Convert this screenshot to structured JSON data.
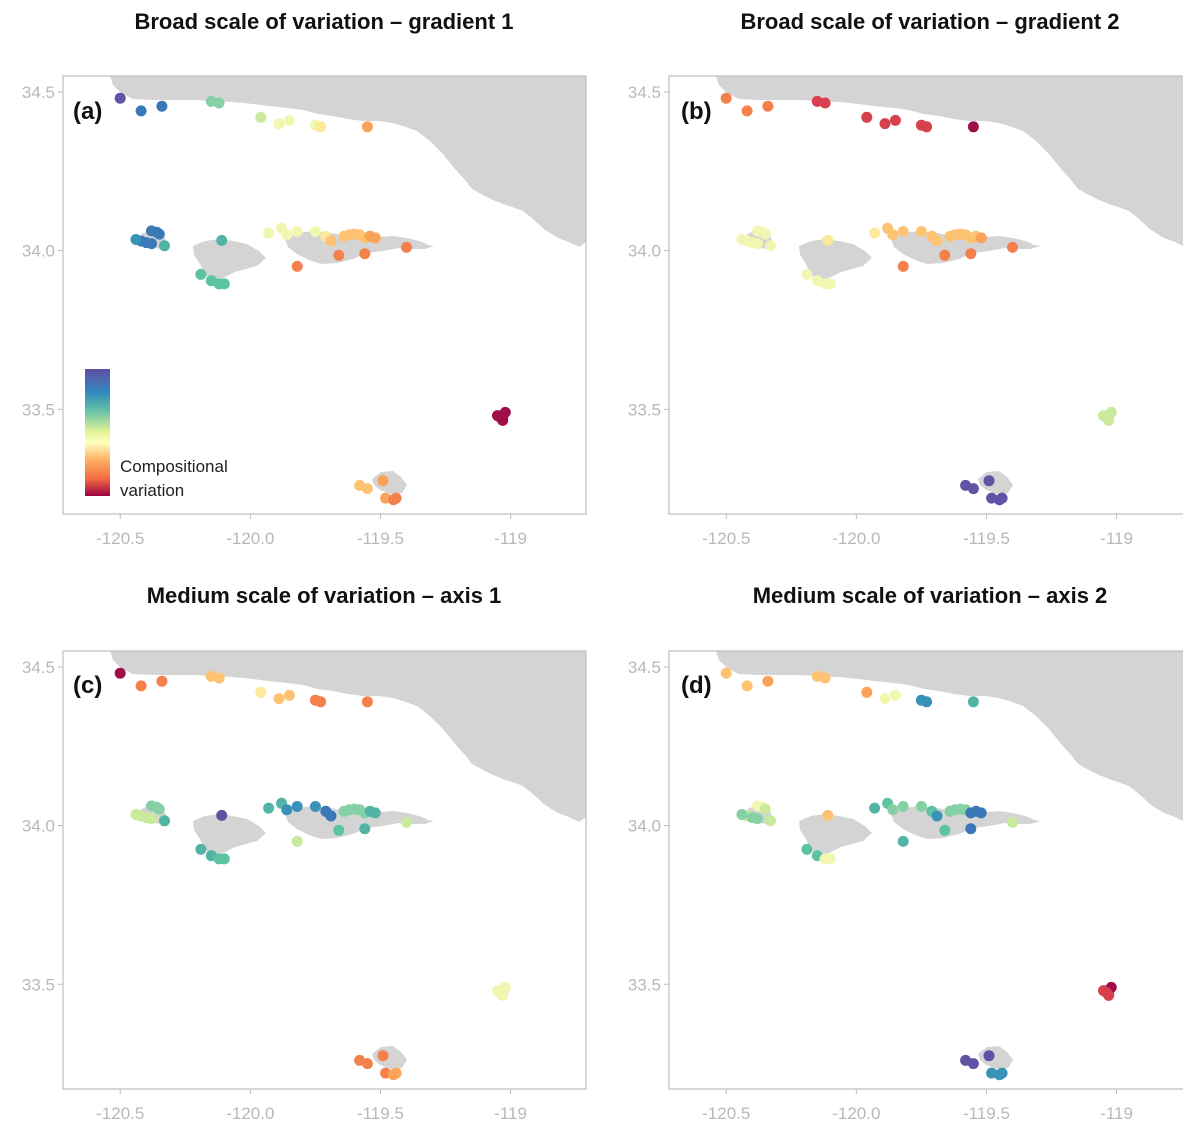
{
  "panels": [
    {
      "id": "a",
      "title": "Broad scale of variation – gradient 1",
      "tag": "(a)",
      "colors": {
        "nw": [
          "v1",
          "b2",
          "b2"
        ],
        "nc": [
          "g1",
          "g1"
        ],
        "ne": [
          "y1",
          "y2",
          "y2",
          "y2",
          "y3",
          "o2"
        ],
        "smi": [
          "b2",
          "b2",
          "b2",
          "b2",
          "b2",
          "b2",
          "b3",
          "g3"
        ],
        "sri": [
          "g2",
          "g2",
          "g2",
          "g2",
          "g3"
        ],
        "scn": [
          "y2",
          "y2",
          "y2",
          "y2",
          "y2",
          "y3",
          "o1",
          "o1",
          "o1",
          "o1",
          "o1",
          "o1",
          "o2",
          "o2",
          "o3",
          "o3",
          "o3",
          "o3"
        ],
        "anac": [
          "r1",
          "r1",
          "r1"
        ],
        "sbi": [
          "o1",
          "o1",
          "o2",
          "o2",
          "o3",
          "o3"
        ]
      }
    },
    {
      "id": "b",
      "title": "Broad scale of variation – gradient 2",
      "tag": "(b)",
      "colors": {
        "nw": [
          "o3",
          "o3",
          "o3"
        ],
        "nc": [
          "r2",
          "r2"
        ],
        "ne": [
          "r2",
          "r2",
          "r2",
          "r2",
          "r2",
          "r1"
        ],
        "smi": [
          "y2",
          "y2",
          "y2",
          "y2",
          "y2",
          "y2",
          "y2",
          "y2"
        ],
        "sri": [
          "y2",
          "y2",
          "y2",
          "y2",
          "y3"
        ],
        "scn": [
          "y3",
          "o1",
          "o1",
          "o1",
          "o1",
          "o1",
          "o1",
          "o1",
          "o1",
          "o1",
          "o1",
          "o1",
          "o1",
          "o2",
          "o3",
          "o3",
          "o3",
          "o3"
        ],
        "anac": [
          "y1",
          "y1",
          "y1"
        ],
        "sbi": [
          "v1",
          "v1",
          "v1",
          "v1",
          "v1",
          "v1"
        ]
      }
    },
    {
      "id": "c",
      "title": "Medium scale of variation – axis 1",
      "tag": "(c)",
      "colors": {
        "nw": [
          "r1",
          "o3",
          "o3"
        ],
        "nc": [
          "o1",
          "o1"
        ],
        "ne": [
          "y3",
          "o1",
          "o1",
          "o3",
          "o3",
          "o3"
        ],
        "smi": [
          "g1",
          "g1",
          "g1",
          "y1",
          "y1",
          "y1",
          "y1",
          "g3"
        ],
        "sri": [
          "g3",
          "g3",
          "g2",
          "g2",
          "v1"
        ],
        "scn": [
          "g3",
          "g3",
          "b3",
          "b3",
          "b3",
          "b2",
          "b2",
          "g1",
          "g1",
          "g1",
          "g1",
          "g1",
          "g3",
          "g3",
          "g3",
          "g2",
          "y1",
          "y1"
        ],
        "anac": [
          "y2",
          "y2",
          "y2"
        ],
        "sbi": [
          "o3",
          "o3",
          "o3",
          "o3",
          "o2",
          "o2"
        ]
      }
    },
    {
      "id": "d",
      "title": "Medium scale of variation – axis 2",
      "tag": "(d)",
      "colors": {
        "nw": [
          "o1",
          "o1",
          "o2"
        ],
        "nc": [
          "o1",
          "o1"
        ],
        "ne": [
          "o2",
          "y2",
          "y2",
          "b3",
          "b3",
          "g3"
        ],
        "smi": [
          "y2",
          "y2",
          "y1",
          "y1",
          "g1",
          "g1",
          "g1",
          "y1"
        ],
        "sri": [
          "g2",
          "g2",
          "y2",
          "y2",
          "o1"
        ],
        "scn": [
          "g3",
          "g2",
          "g1",
          "g1",
          "g1",
          "g2",
          "b3",
          "g1",
          "g1",
          "g1",
          "g1",
          "b2",
          "b2",
          "b2",
          "b2",
          "g2",
          "g3",
          "y1"
        ],
        "anac": [
          "r2",
          "r1",
          "r1"
        ],
        "sbi": [
          "v1",
          "v1",
          "v1",
          "b3",
          "b3",
          "b3"
        ]
      }
    }
  ],
  "palette": {
    "v1": "#6152a5",
    "b2": "#3a79b8",
    "b3": "#3a92b6",
    "g3": "#53b3a5",
    "g2": "#5cc3a0",
    "g1": "#86d0a5",
    "y1": "#c9e99c",
    "y2": "#f1f7b1",
    "y3": "#fde99a",
    "o1": "#fdc372",
    "o2": "#f9a258",
    "o3": "#f4804c",
    "r2": "#d8404e",
    "r1": "#a00e4a"
  },
  "legend": {
    "label_line1": "Compositional",
    "label_line2": "variation"
  },
  "axes": {
    "x_ticks": [
      "-120.5",
      "-120.0",
      "-119.5",
      "-119"
    ],
    "x_values": [
      -120.5,
      -120.0,
      -119.5,
      -119.0
    ],
    "y_ticks": [
      "34.5",
      "34.0",
      "33.5"
    ],
    "y_values": [
      34.5,
      34.0,
      33.5
    ],
    "xlim": [
      -120.72,
      -118.71
    ],
    "ylim": [
      33.17,
      34.55
    ]
  },
  "colors": {
    "land": "#d4d4d4",
    "frame": "#bdbdbd",
    "tick_text": "#b8b8b8"
  }
}
